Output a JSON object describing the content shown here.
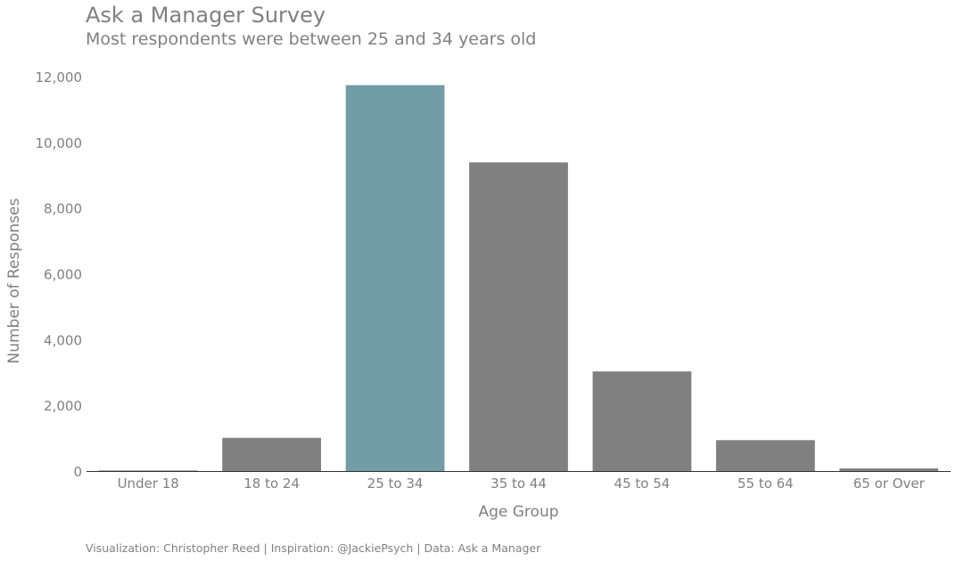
{
  "title": "Ask a Manager Survey",
  "subtitle": "Most respondents were between 25 and 34 years old",
  "caption": "Visualization: Christopher Reed | Inspiration: @JackiePsych | Data: Ask a Manager",
  "colors": {
    "highlight": "#729ca6",
    "default": "#808080",
    "text": "#808080"
  },
  "chart_data": {
    "type": "bar",
    "categories": [
      "Under 18",
      "18 to 24",
      "25 to 34",
      "35 to 44",
      "45 to 54",
      "55 to 64",
      "65 or Over"
    ],
    "values": [
      18,
      1010,
      11740,
      9390,
      3030,
      940,
      80
    ],
    "highlight_category": "25 to 34",
    "xlabel": "Age Group",
    "ylabel": "Number of Responses",
    "ylim": [
      0,
      12000
    ],
    "yticks": [
      0,
      2000,
      4000,
      6000,
      8000,
      10000,
      12000
    ],
    "ytick_labels": [
      "0",
      "2,000",
      "4,000",
      "6,000",
      "8,000",
      "10,000",
      "12,000"
    ],
    "grid": false,
    "legend": "none"
  }
}
